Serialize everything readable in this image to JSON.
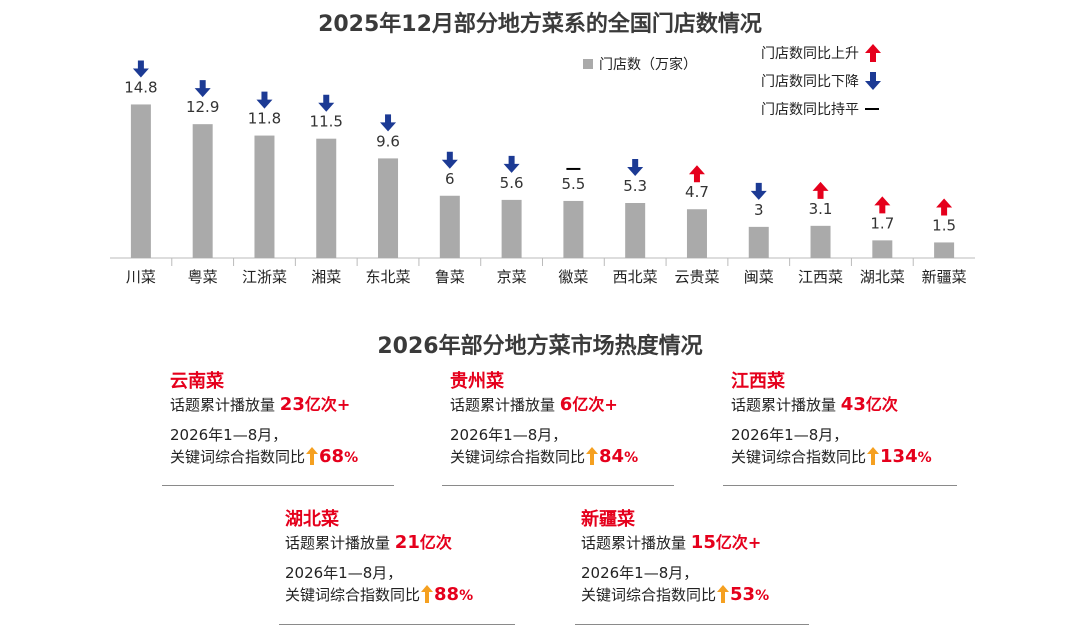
{
  "colors": {
    "bar": "#aaaaaa",
    "up": "#e5001c",
    "down": "#1c3a94",
    "flat": "#000000",
    "highlight": "#e5001c",
    "title": "#3a3a3a",
    "growth_arrow": "#f5a020"
  },
  "chart_data": {
    "type": "bar",
    "title": "2025年12月部分地方菜系的全国门店数情况",
    "categories": [
      "川菜",
      "粤菜",
      "江浙菜",
      "湘菜",
      "东北菜",
      "鲁菜",
      "京菜",
      "徽菜",
      "西北菜",
      "云贵菜",
      "闽菜",
      "江西菜",
      "湖北菜",
      "新疆菜"
    ],
    "series": [
      {
        "name": "门店数（万家）",
        "values": [
          14.8,
          12.9,
          11.8,
          11.5,
          9.6,
          6,
          5.6,
          5.5,
          5.3,
          4.7,
          3,
          3.1,
          1.7,
          1.5
        ],
        "labels": [
          "14.8",
          "12.9",
          "11.8",
          "11.5",
          "9.6",
          "6",
          "5.6",
          "5.5",
          "5.3",
          "4.7",
          "3",
          "3.1",
          "1.7",
          "1.5"
        ]
      }
    ],
    "yoy_trend": [
      "down",
      "down",
      "down",
      "down",
      "down",
      "down",
      "down",
      "flat",
      "down",
      "up",
      "down",
      "up",
      "up",
      "up"
    ],
    "ylim": [
      0,
      16
    ],
    "grid": false,
    "legend": {
      "position": "top-right",
      "bar_label": "门店数（万家）",
      "up_label": "门店数同比上升",
      "down_label": "门店数同比下降",
      "flat_label": "门店数同比持平"
    }
  },
  "section2": {
    "title": "2026年部分地方菜市场热度情况",
    "cards": [
      {
        "name": "云南菜",
        "volume_label": "话题累计播放量",
        "volume_num": "23",
        "volume_unit": "亿次+",
        "period": "2026年1—8月，",
        "index_label": "关键词综合指数同比",
        "pct_num": "68",
        "pct_sign": "%"
      },
      {
        "name": "贵州菜",
        "volume_label": "话题累计播放量",
        "volume_num": "6",
        "volume_unit": "亿次+",
        "period": "2026年1—8月，",
        "index_label": "关键词综合指数同比",
        "pct_num": "84",
        "pct_sign": "%"
      },
      {
        "name": "江西菜",
        "volume_label": "话题累计播放量",
        "volume_num": "43",
        "volume_unit": "亿次",
        "period": "2026年1—8月，",
        "index_label": "关键词综合指数同比",
        "pct_num": "134",
        "pct_sign": "%"
      },
      {
        "name": "湖北菜",
        "volume_label": "话题累计播放量",
        "volume_num": "21",
        "volume_unit": "亿次",
        "period": "2026年1—8月，",
        "index_label": "关键词综合指数同比",
        "pct_num": "88",
        "pct_sign": "%"
      },
      {
        "name": "新疆菜",
        "volume_label": "话题累计播放量",
        "volume_num": "15",
        "volume_unit": "亿次+",
        "period": "2026年1—8月，",
        "index_label": "关键词综合指数同比",
        "pct_num": "53",
        "pct_sign": "%"
      }
    ]
  }
}
